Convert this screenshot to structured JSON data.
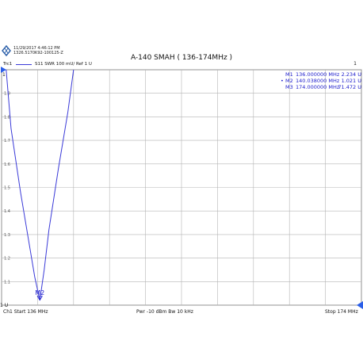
{
  "header": {
    "datetime": "11/29/2017 4:46:12 PM",
    "instrument_id": "1326.5170K92-100125-Z",
    "title": "A-140 SMAH ( 136-174MHz )",
    "trace_label": "Trc1",
    "trace_info": "S11  SWR  100 mU/ Ref 1 U",
    "channel_number": "1"
  },
  "markers": [
    {
      "label": "M1",
      "freq": "136.000000  MHz",
      "value": "2.234  U",
      "active": false
    },
    {
      "label": "M2",
      "freq": "140.038000  MHz",
      "value": "1.021  U",
      "active": true
    },
    {
      "label": "M3",
      "freq": "174.000000  MHz",
      "value": "71.472  U",
      "active": false
    }
  ],
  "marker_on_trace": "M2",
  "footer": {
    "start": "Ch1  Start  136 MHz",
    "center": "Pwr  -10 dBm  Bw  10 kHz",
    "stop": "Stop  174 MHz"
  },
  "chart_data": {
    "type": "line",
    "xlabel": "",
    "ylabel": "",
    "xlim": [
      136,
      174
    ],
    "ylim": [
      1,
      2
    ],
    "y_ticks": [
      "1.9",
      "1.8",
      "1.7",
      "1.6",
      "1.5",
      "1.4",
      "1.3",
      "1.2",
      "1.1"
    ],
    "y_top_label": "1",
    "y_bottom_label": "1 U",
    "grid": true,
    "series": [
      {
        "name": "S11",
        "color": "#3a3ad8",
        "x": [
          136.0,
          137.0,
          138.0,
          139.0,
          139.5,
          140.038,
          140.5,
          141.0,
          142.0,
          143.0,
          143.6
        ],
        "y": [
          2.234,
          1.75,
          1.48,
          1.24,
          1.12,
          1.021,
          1.15,
          1.32,
          1.58,
          1.82,
          2.0
        ]
      }
    ]
  },
  "colors": {
    "trace": "#3a3ad8",
    "marker_text": "#1c1ccc",
    "grid": "#b4b4b4",
    "axis_marker": "#2a5ee8"
  }
}
